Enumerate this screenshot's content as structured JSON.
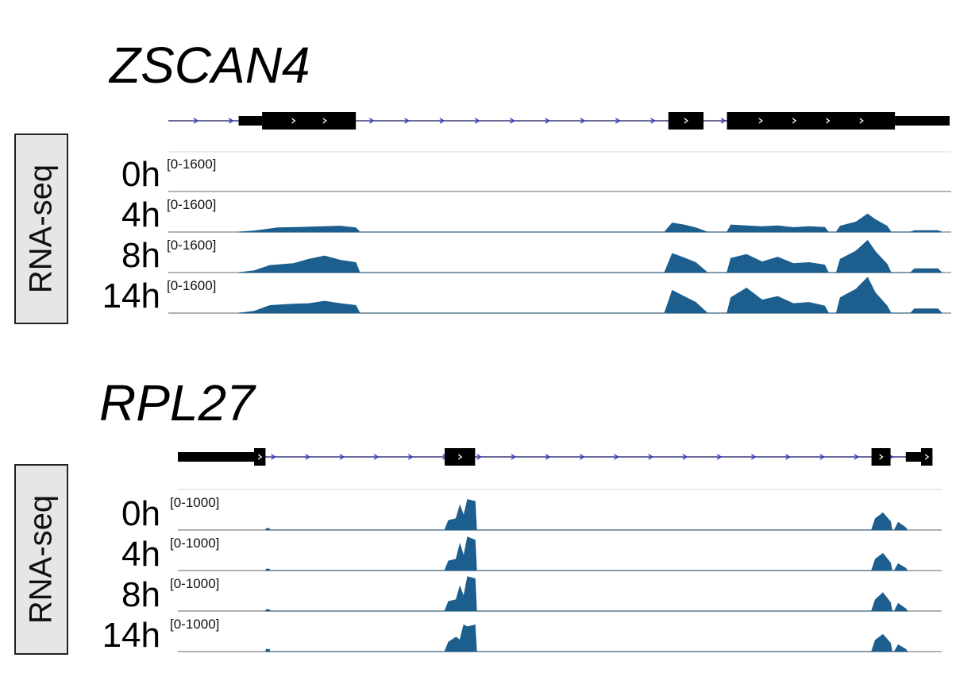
{
  "colors": {
    "signal": "#1c5f8f",
    "gene": "#000000",
    "intron": "#3a3a7a",
    "arrow": "#3a3acc",
    "baseline": "#9a9a9a",
    "box_bg": "#e6e6e6"
  },
  "chart_data": [
    {
      "type": "area",
      "gene": "ZSCAN4",
      "side_label": "RNA-seq",
      "range_label": "[0-1600]",
      "ylim": [
        0,
        1600
      ],
      "gene_model": {
        "utr": [
          [
            0.09,
            0.12
          ],
          [
            0.93,
            1.0
          ]
        ],
        "exons": [
          [
            0.12,
            0.24
          ],
          [
            0.64,
            0.685
          ],
          [
            0.715,
            0.93
          ]
        ],
        "intron": [
          0.0,
          1.0
        ],
        "direction": "+"
      },
      "tracks": [
        {
          "time": "0h",
          "profile": []
        },
        {
          "time": "4h",
          "profile": [
            [
              0.09,
              0
            ],
            [
              0.11,
              50
            ],
            [
              0.14,
              180
            ],
            [
              0.18,
              210
            ],
            [
              0.22,
              250
            ],
            [
              0.24,
              180
            ],
            [
              0.245,
              0
            ],
            [
              0.635,
              0
            ],
            [
              0.645,
              380
            ],
            [
              0.66,
              300
            ],
            [
              0.675,
              180
            ],
            [
              0.69,
              0
            ],
            [
              0.715,
              0
            ],
            [
              0.72,
              300
            ],
            [
              0.74,
              260
            ],
            [
              0.76,
              230
            ],
            [
              0.78,
              260
            ],
            [
              0.8,
              190
            ],
            [
              0.82,
              230
            ],
            [
              0.84,
              200
            ],
            [
              0.845,
              0
            ],
            [
              0.855,
              0
            ],
            [
              0.86,
              250
            ],
            [
              0.88,
              420
            ],
            [
              0.895,
              760
            ],
            [
              0.905,
              520
            ],
            [
              0.92,
              250
            ],
            [
              0.925,
              0
            ],
            [
              0.95,
              0
            ],
            [
              0.955,
              60
            ],
            [
              0.985,
              60
            ],
            [
              0.99,
              0
            ]
          ]
        },
        {
          "time": "8h",
          "profile": [
            [
              0.09,
              0
            ],
            [
              0.11,
              80
            ],
            [
              0.13,
              300
            ],
            [
              0.16,
              380
            ],
            [
              0.18,
              560
            ],
            [
              0.2,
              700
            ],
            [
              0.22,
              520
            ],
            [
              0.24,
              420
            ],
            [
              0.245,
              0
            ],
            [
              0.635,
              0
            ],
            [
              0.645,
              800
            ],
            [
              0.66,
              620
            ],
            [
              0.675,
              420
            ],
            [
              0.69,
              0
            ],
            [
              0.715,
              0
            ],
            [
              0.72,
              600
            ],
            [
              0.74,
              760
            ],
            [
              0.76,
              450
            ],
            [
              0.78,
              650
            ],
            [
              0.8,
              380
            ],
            [
              0.82,
              420
            ],
            [
              0.84,
              320
            ],
            [
              0.845,
              0
            ],
            [
              0.855,
              0
            ],
            [
              0.86,
              560
            ],
            [
              0.88,
              900
            ],
            [
              0.895,
              1350
            ],
            [
              0.905,
              880
            ],
            [
              0.92,
              350
            ],
            [
              0.925,
              0
            ],
            [
              0.95,
              0
            ],
            [
              0.955,
              160
            ],
            [
              0.985,
              160
            ],
            [
              0.99,
              0
            ]
          ]
        },
        {
          "time": "14h",
          "profile": [
            [
              0.09,
              0
            ],
            [
              0.11,
              80
            ],
            [
              0.13,
              320
            ],
            [
              0.16,
              380
            ],
            [
              0.18,
              400
            ],
            [
              0.2,
              500
            ],
            [
              0.22,
              400
            ],
            [
              0.24,
              320
            ],
            [
              0.245,
              0
            ],
            [
              0.635,
              0
            ],
            [
              0.645,
              950
            ],
            [
              0.66,
              700
            ],
            [
              0.675,
              450
            ],
            [
              0.69,
              0
            ],
            [
              0.715,
              0
            ],
            [
              0.72,
              650
            ],
            [
              0.74,
              1050
            ],
            [
              0.76,
              550
            ],
            [
              0.78,
              700
            ],
            [
              0.8,
              400
            ],
            [
              0.82,
              450
            ],
            [
              0.84,
              300
            ],
            [
              0.845,
              0
            ],
            [
              0.855,
              0
            ],
            [
              0.86,
              650
            ],
            [
              0.88,
              1000
            ],
            [
              0.895,
              1500
            ],
            [
              0.905,
              850
            ],
            [
              0.92,
              300
            ],
            [
              0.925,
              0
            ],
            [
              0.95,
              0
            ],
            [
              0.955,
              180
            ],
            [
              0.985,
              180
            ],
            [
              0.99,
              0
            ]
          ]
        }
      ]
    },
    {
      "type": "area",
      "gene": "RPL27",
      "side_label": "RNA-seq",
      "range_label": "[0-1000]",
      "ylim": [
        0,
        1000
      ],
      "gene_model": {
        "utr": [
          [
            0.0,
            0.1
          ],
          [
            0.955,
            0.975
          ]
        ],
        "exons": [
          [
            0.1,
            0.115
          ],
          [
            0.35,
            0.39
          ],
          [
            0.91,
            0.935
          ],
          [
            0.975,
            0.99
          ]
        ],
        "intron": [
          0.0,
          0.99
        ],
        "direction": "+"
      },
      "tracks": [
        {
          "time": "0h",
          "profile": [
            [
              0.115,
              0
            ],
            [
              0.116,
              40
            ],
            [
              0.12,
              40
            ],
            [
              0.121,
              0
            ],
            [
              0.35,
              0
            ],
            [
              0.355,
              250
            ],
            [
              0.365,
              300
            ],
            [
              0.37,
              650
            ],
            [
              0.375,
              380
            ],
            [
              0.38,
              800
            ],
            [
              0.39,
              750
            ],
            [
              0.392,
              0
            ],
            [
              0.91,
              0
            ],
            [
              0.915,
              300
            ],
            [
              0.925,
              450
            ],
            [
              0.935,
              220
            ],
            [
              0.937,
              0
            ],
            [
              0.94,
              0
            ],
            [
              0.945,
              200
            ],
            [
              0.955,
              60
            ],
            [
              0.957,
              0
            ]
          ]
        },
        {
          "time": "4h",
          "profile": [
            [
              0.115,
              0
            ],
            [
              0.116,
              40
            ],
            [
              0.12,
              40
            ],
            [
              0.121,
              0
            ],
            [
              0.35,
              0
            ],
            [
              0.355,
              250
            ],
            [
              0.365,
              300
            ],
            [
              0.37,
              700
            ],
            [
              0.375,
              380
            ],
            [
              0.38,
              880
            ],
            [
              0.39,
              800
            ],
            [
              0.392,
              0
            ],
            [
              0.91,
              0
            ],
            [
              0.915,
              300
            ],
            [
              0.925,
              450
            ],
            [
              0.935,
              200
            ],
            [
              0.937,
              0
            ],
            [
              0.94,
              0
            ],
            [
              0.945,
              180
            ],
            [
              0.955,
              60
            ],
            [
              0.957,
              0
            ]
          ]
        },
        {
          "time": "8h",
          "profile": [
            [
              0.115,
              0
            ],
            [
              0.116,
              40
            ],
            [
              0.12,
              40
            ],
            [
              0.121,
              0
            ],
            [
              0.35,
              0
            ],
            [
              0.355,
              250
            ],
            [
              0.365,
              300
            ],
            [
              0.37,
              650
            ],
            [
              0.375,
              380
            ],
            [
              0.38,
              900
            ],
            [
              0.39,
              850
            ],
            [
              0.392,
              0
            ],
            [
              0.91,
              0
            ],
            [
              0.915,
              300
            ],
            [
              0.925,
              480
            ],
            [
              0.935,
              220
            ],
            [
              0.937,
              0
            ],
            [
              0.94,
              0
            ],
            [
              0.945,
              200
            ],
            [
              0.955,
              60
            ],
            [
              0.957,
              0
            ]
          ]
        },
        {
          "time": "14h",
          "profile": [
            [
              0.115,
              0
            ],
            [
              0.116,
              60
            ],
            [
              0.12,
              60
            ],
            [
              0.121,
              0
            ],
            [
              0.35,
              0
            ],
            [
              0.355,
              250
            ],
            [
              0.365,
              380
            ],
            [
              0.37,
              300
            ],
            [
              0.375,
              700
            ],
            [
              0.38,
              650
            ],
            [
              0.39,
              700
            ],
            [
              0.392,
              0
            ],
            [
              0.91,
              0
            ],
            [
              0.915,
              300
            ],
            [
              0.925,
              450
            ],
            [
              0.935,
              220
            ],
            [
              0.937,
              0
            ],
            [
              0.94,
              0
            ],
            [
              0.945,
              180
            ],
            [
              0.955,
              60
            ],
            [
              0.957,
              0
            ]
          ]
        }
      ]
    }
  ]
}
